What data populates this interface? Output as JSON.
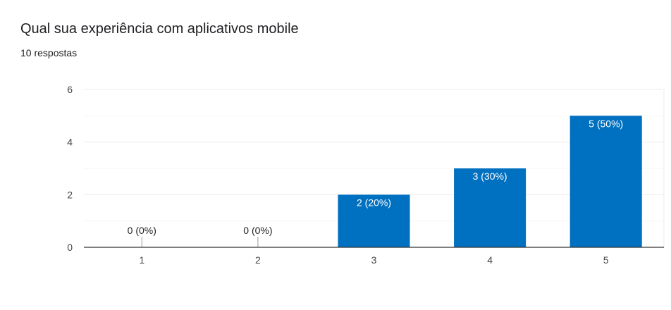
{
  "title": "Qual sua experiência com aplicativos mobile",
  "subtitle": "10 respostas",
  "colors": {
    "bar": "#0070c0",
    "grid": "#ebebeb",
    "minor_grid": "#f5f5f5",
    "axis": "#333333",
    "label_inside": "#ffffff",
    "label_outside": "#222222"
  },
  "chart_data": {
    "type": "bar",
    "categories": [
      "1",
      "2",
      "3",
      "4",
      "5"
    ],
    "values": [
      0,
      0,
      2,
      3,
      5
    ],
    "data_labels": [
      "0 (0%)",
      "0 (0%)",
      "2 (20%)",
      "3 (30%)",
      "5 (50%)"
    ],
    "title": "Qual sua experiência com aplicativos mobile",
    "xlabel": "",
    "ylabel": "",
    "ylim": [
      0,
      6
    ],
    "yticks": [
      0,
      2,
      4,
      6
    ],
    "grid": true,
    "legend": "none"
  }
}
